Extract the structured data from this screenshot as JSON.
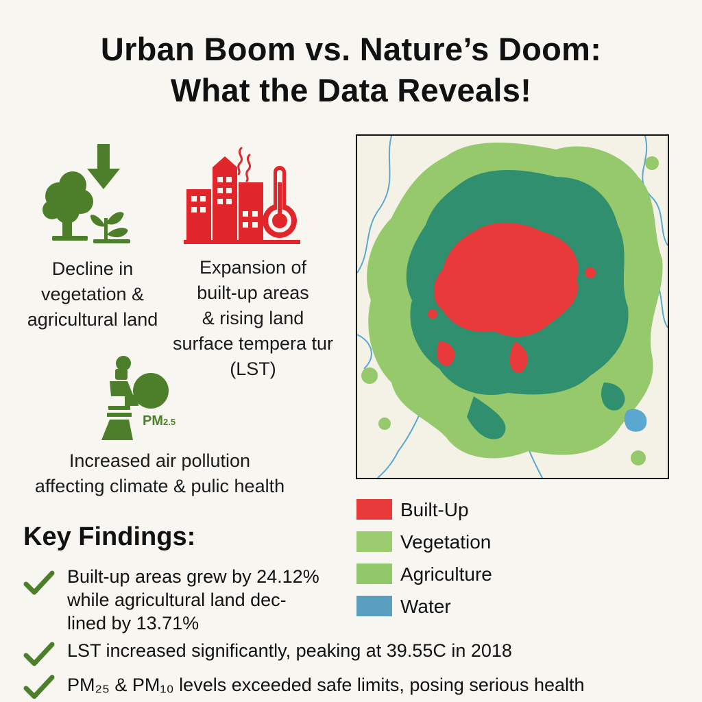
{
  "title": {
    "line1": "Urban Boom vs. Nature’s Doom:",
    "line2": "What the Data Reveals!"
  },
  "impacts": [
    {
      "icon": "tree-sprout-down-arrow-icon",
      "lines": [
        "Decline in",
        "vegetation &",
        "agricultural land"
      ]
    },
    {
      "icon": "buildings-thermometer-icon",
      "lines": [
        "Expansion of",
        "built-up areas",
        "& rising land",
        "surface tempera tur",
        "(LST)"
      ]
    },
    {
      "icon": "factory-smoke-icon",
      "badge": "PM",
      "badge_sub": "2.5",
      "lines": [
        "Increased air pollution",
        "affecting climate & pulic health"
      ]
    }
  ],
  "legend": [
    {
      "label": "Built-Up",
      "color": "#e83a3a"
    },
    {
      "label": "Vegetation",
      "color": "#9bcc70"
    },
    {
      "label": "Agriculture",
      "color": "#92c86c"
    },
    {
      "label": "Water",
      "color": "#5a9fc0"
    }
  ],
  "colors": {
    "green_icon": "#4d7f2a",
    "red_icon": "#e0262b",
    "built_up": "#e83a3a",
    "dense_veg": "#2f8f6e",
    "light_veg": "#95c96b",
    "water": "#5aa7cf"
  },
  "key_findings": {
    "heading": "Key Findings:",
    "items": [
      {
        "lines": [
          "Built-up areas grew by 24.12%",
          "while agricultural land dec-",
          "lined by 13.71%"
        ]
      },
      {
        "lines": [
          "LST increased significantly, peaking at 39.55C in 2018"
        ]
      },
      {
        "lines": [
          "PM₂₅ & PM₁₀ levels exceeded safe limits, posing serious health"
        ]
      }
    ]
  }
}
